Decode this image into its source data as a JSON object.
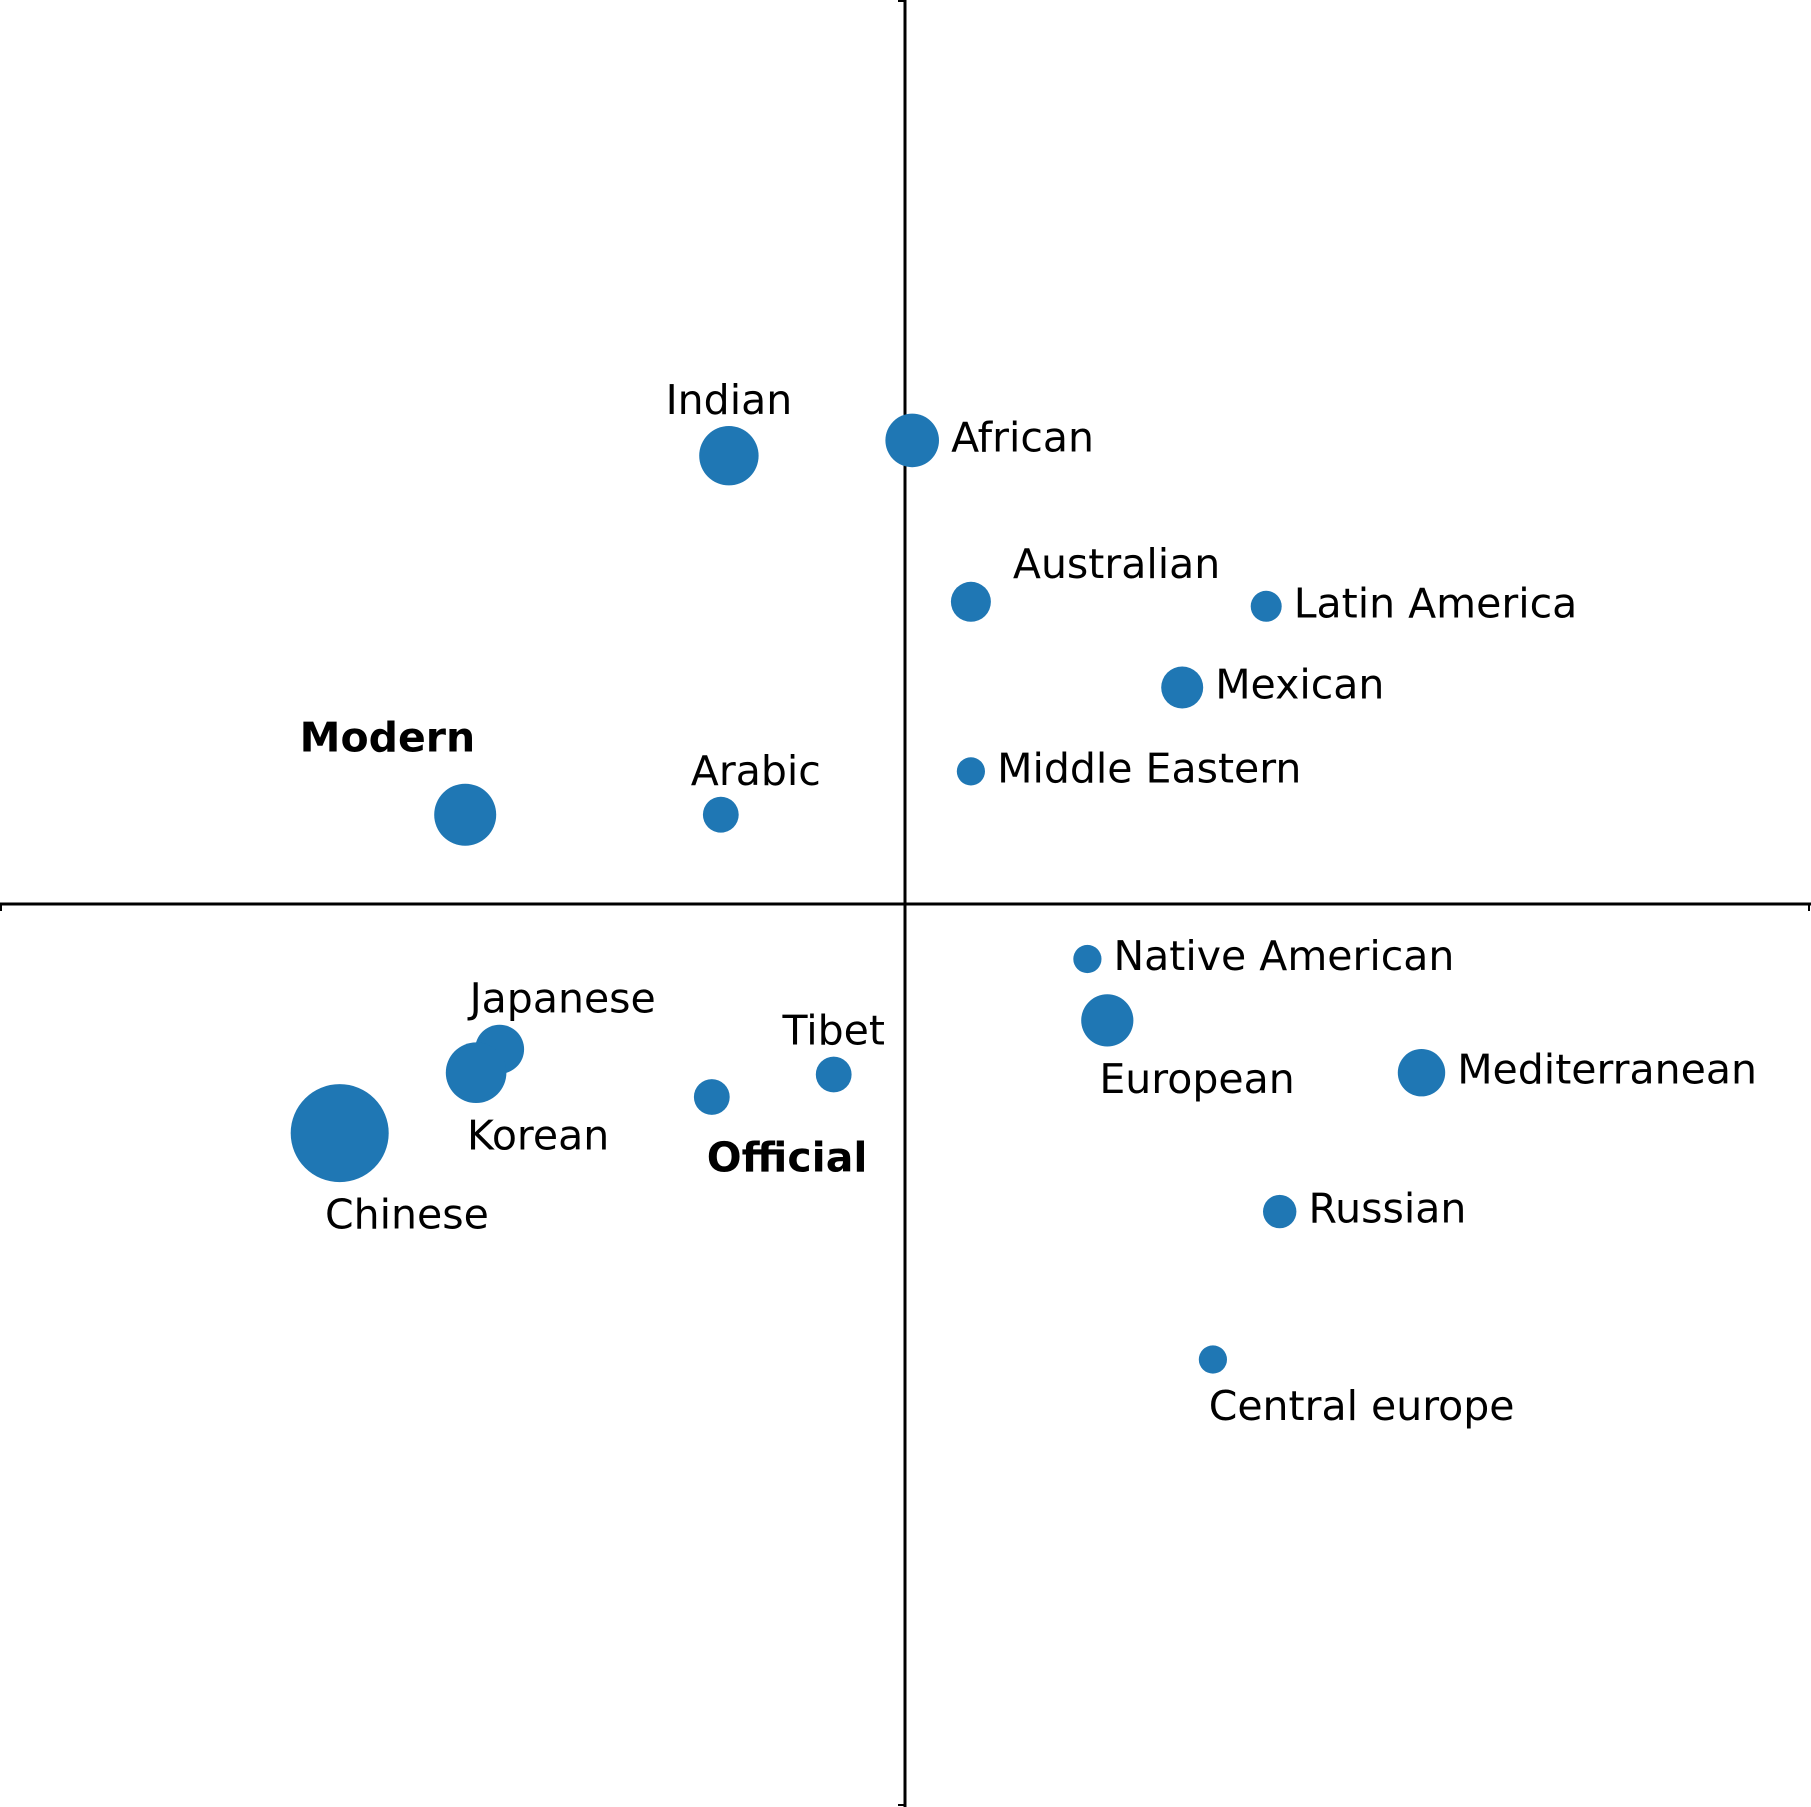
{
  "chart_data": {
    "type": "scatter",
    "xlim": [
      -1,
      1
    ],
    "ylim": [
      -1,
      1
    ],
    "grid": false,
    "axes": "cross-at-origin, no tick labels",
    "marker_color": "#1f77b4",
    "points": [
      {
        "label": "Indian",
        "x": -0.195,
        "y": 0.497,
        "size": 2.2,
        "bold": false,
        "label_pos": "above"
      },
      {
        "label": "African",
        "x": 0.008,
        "y": 0.514,
        "size": 1.8,
        "bold": false,
        "label_pos": "right"
      },
      {
        "label": "Australian",
        "x": 0.073,
        "y": 0.335,
        "size": 1.0,
        "bold": false,
        "label_pos": "upper-right"
      },
      {
        "label": "Latin America",
        "x": 0.4,
        "y": 0.33,
        "size": 0.6,
        "bold": false,
        "label_pos": "right"
      },
      {
        "label": "Mexican",
        "x": 0.307,
        "y": 0.24,
        "size": 1.1,
        "bold": false,
        "label_pos": "right"
      },
      {
        "label": "Middle Eastern",
        "x": 0.073,
        "y": 0.147,
        "size": 0.5,
        "bold": false,
        "label_pos": "right"
      },
      {
        "label": "Modern",
        "x": -0.487,
        "y": 0.099,
        "size": 2.4,
        "bold": true,
        "label_pos": "above-left"
      },
      {
        "label": "Arabic",
        "x": -0.204,
        "y": 0.099,
        "size": 0.8,
        "bold": false,
        "label_pos": "above-right"
      },
      {
        "label": "Native American",
        "x": 0.202,
        "y": -0.061,
        "size": 0.5,
        "bold": false,
        "label_pos": "right"
      },
      {
        "label": "European",
        "x": 0.224,
        "y": -0.129,
        "size": 1.7,
        "bold": false,
        "label_pos": "below"
      },
      {
        "label": "Mediterranean",
        "x": 0.572,
        "y": -0.187,
        "size": 1.4,
        "bold": false,
        "label_pos": "right"
      },
      {
        "label": "Japanese",
        "x": -0.449,
        "y": -0.161,
        "size": 1.5,
        "bold": false,
        "label_pos": "above-right"
      },
      {
        "label": "Korean",
        "x": -0.475,
        "y": -0.187,
        "size": 2.3,
        "bold": false,
        "label_pos": "below"
      },
      {
        "label": "Tibet",
        "x": -0.079,
        "y": -0.189,
        "size": 0.8,
        "bold": false,
        "label_pos": "above"
      },
      {
        "label": "Official",
        "x": -0.214,
        "y": -0.214,
        "size": 0.8,
        "bold": true,
        "label_pos": "below-right"
      },
      {
        "label": "Chinese",
        "x": -0.626,
        "y": -0.254,
        "size": 6.0,
        "bold": false,
        "label_pos": "below"
      },
      {
        "label": "Russian",
        "x": 0.415,
        "y": -0.341,
        "size": 0.7,
        "bold": false,
        "label_pos": "right"
      },
      {
        "label": "Central europe",
        "x": 0.341,
        "y": -0.505,
        "size": 0.5,
        "bold": false,
        "label_pos": "below"
      }
    ]
  }
}
